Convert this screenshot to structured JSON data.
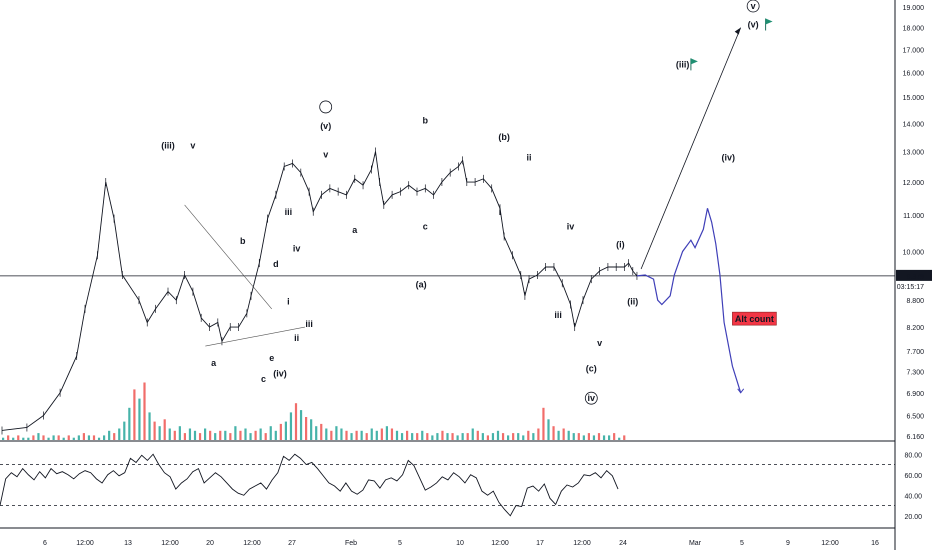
{
  "chart_data": {
    "type": "line",
    "symbol_panel": "price",
    "price_axis": {
      "ticks": [
        6.16,
        6.5,
        6.9,
        7.3,
        7.7,
        8.2,
        8.8,
        9.379,
        10.0,
        11.0,
        12.0,
        13.0,
        14.0,
        15.0,
        16.0,
        17.0,
        18.0,
        19.0
      ],
      "tick_labels": [
        "6.160",
        "6.500",
        "6.900",
        "7.300",
        "7.700",
        "8.200",
        "8.800",
        "10.000",
        "11.000",
        "12.000",
        "13.000",
        "14.000",
        "15.000",
        "16.000",
        "17.000",
        "18.000",
        "19.000"
      ],
      "last_price": "9.379",
      "countdown": "03:15:17",
      "scale": "log",
      "last_price_color": "#131722"
    },
    "time_axis": {
      "labels": [
        "6",
        "12:00",
        "13",
        "12:00",
        "20",
        "12:00",
        "27",
        "Feb",
        "5",
        "10",
        "12:00",
        "17",
        "12:00",
        "24",
        "Mar",
        "5",
        "9",
        "12:00",
        "16"
      ]
    },
    "price_path": [
      [
        0,
        6.25
      ],
      [
        6,
        6.3
      ],
      [
        10,
        6.5
      ],
      [
        14,
        6.9
      ],
      [
        18,
        7.6
      ],
      [
        20,
        8.6
      ],
      [
        23,
        9.9
      ],
      [
        25,
        12.0
      ],
      [
        27,
        10.9
      ],
      [
        29,
        9.4
      ],
      [
        33,
        8.8
      ],
      [
        35,
        8.3
      ],
      [
        37,
        8.6
      ],
      [
        40,
        9.0
      ],
      [
        42,
        8.8
      ],
      [
        44,
        9.4
      ],
      [
        46,
        9.0
      ],
      [
        48,
        8.4
      ],
      [
        50,
        8.2
      ],
      [
        52,
        8.3
      ],
      [
        53,
        7.9
      ],
      [
        55,
        8.2
      ],
      [
        57,
        8.2
      ],
      [
        59,
        8.5
      ],
      [
        60,
        8.9
      ],
      [
        62,
        9.7
      ],
      [
        64,
        10.9
      ],
      [
        66,
        11.6
      ],
      [
        68,
        12.5
      ],
      [
        70,
        12.6
      ],
      [
        72,
        12.3
      ],
      [
        74,
        11.7
      ],
      [
        75,
        11.1
      ],
      [
        77,
        11.6
      ],
      [
        79,
        11.8
      ],
      [
        81,
        11.7
      ],
      [
        83,
        11.6
      ],
      [
        85,
        12.1
      ],
      [
        87,
        11.9
      ],
      [
        89,
        12.4
      ],
      [
        90,
        13.0
      ],
      [
        91,
        12.0
      ],
      [
        92,
        11.3
      ],
      [
        94,
        11.6
      ],
      [
        96,
        11.7
      ],
      [
        98,
        11.9
      ],
      [
        100,
        11.7
      ],
      [
        102,
        11.8
      ],
      [
        104,
        11.6
      ],
      [
        106,
        12.0
      ],
      [
        108,
        12.3
      ],
      [
        110,
        12.5
      ],
      [
        111,
        12.7
      ],
      [
        112,
        12.0
      ],
      [
        114,
        12.0
      ],
      [
        116,
        12.1
      ],
      [
        118,
        11.8
      ],
      [
        120,
        11.2
      ],
      [
        121,
        10.4
      ],
      [
        123,
        9.9
      ],
      [
        125,
        9.4
      ],
      [
        126,
        8.9
      ],
      [
        127,
        9.3
      ],
      [
        129,
        9.4
      ],
      [
        131,
        9.6
      ],
      [
        133,
        9.6
      ],
      [
        135,
        9.2
      ],
      [
        137,
        8.7
      ],
      [
        138,
        8.2
      ],
      [
        140,
        8.8
      ],
      [
        142,
        9.3
      ],
      [
        144,
        9.5
      ],
      [
        146,
        9.6
      ],
      [
        148,
        9.6
      ],
      [
        150,
        9.6
      ],
      [
        151,
        9.7
      ],
      [
        152,
        9.5
      ],
      [
        153,
        9.379
      ]
    ],
    "projection": [
      [
        153,
        9.379
      ],
      [
        155,
        9.4
      ],
      [
        157,
        9.3
      ],
      [
        158,
        8.8
      ],
      [
        159,
        8.7
      ],
      [
        161,
        8.9
      ],
      [
        162,
        9.4
      ],
      [
        164,
        10.0
      ],
      [
        166,
        10.3
      ],
      [
        167,
        10.1
      ],
      [
        169,
        10.6
      ],
      [
        170,
        11.2
      ],
      [
        171,
        10.8
      ],
      [
        172,
        10.2
      ],
      [
        173,
        9.4
      ],
      [
        174,
        8.3
      ],
      [
        176,
        7.4
      ],
      [
        178,
        6.9
      ]
    ],
    "arrow_projection": [
      [
        154,
        9.55
      ],
      [
        178,
        18.0
      ]
    ],
    "triangle_upper": [
      [
        44,
        11.3
      ],
      [
        65,
        8.6
      ]
    ],
    "triangle_lower": [
      [
        49,
        7.8
      ],
      [
        73,
        8.2
      ]
    ],
    "wave_labels": [
      "(iii)",
      "v",
      "b",
      "d",
      "i",
      "a",
      "c",
      "e",
      "(iv)",
      "ii",
      "iii",
      "iv",
      "iii",
      "(v)",
      "v",
      "a",
      "c",
      "(a)",
      "b",
      "(b)",
      "ii",
      "i",
      "iv",
      "(i)",
      "iii",
      "v",
      "(ii)",
      "(c)",
      "iv",
      "(iii)",
      "(iv)",
      "(v)",
      "v"
    ],
    "annotations": {
      "alt_count": "Alt count",
      "alt_count_color": "#f23645"
    },
    "volume": {
      "up_color": "#26a69a",
      "down_color": "#ef5350",
      "bars": [
        1,
        2,
        1,
        2,
        1,
        1,
        2,
        3,
        2,
        1,
        2,
        2,
        1,
        2,
        1,
        2,
        3,
        2,
        2,
        1,
        2,
        4,
        3,
        5,
        8,
        14,
        22,
        18,
        25,
        12,
        8,
        6,
        9,
        5,
        4,
        6,
        3,
        5,
        4,
        3,
        5,
        4,
        3,
        4,
        4,
        3,
        6,
        4,
        5,
        3,
        4,
        5,
        3,
        6,
        4,
        7,
        8,
        12,
        16,
        13,
        10,
        9,
        6,
        7,
        5,
        4,
        6,
        5,
        4,
        3,
        4,
        4,
        3,
        5,
        4,
        5,
        6,
        5,
        4,
        3,
        4,
        3,
        3,
        4,
        3,
        2,
        3,
        4,
        3,
        3,
        2,
        3,
        3,
        5,
        4,
        3,
        2,
        3,
        4,
        3,
        2,
        3,
        3,
        2,
        4,
        3,
        5,
        14,
        9,
        6,
        4,
        5,
        4,
        3,
        3,
        2,
        3,
        2,
        3,
        2,
        2,
        3,
        1,
        2
      ],
      "bars_up": [
        true,
        false,
        true,
        false,
        true,
        true,
        false,
        true,
        false,
        true,
        true,
        false,
        true,
        false,
        true,
        true,
        false,
        true,
        false,
        true,
        true,
        true,
        false,
        true,
        true,
        true,
        false,
        true,
        false,
        true,
        false,
        true,
        false,
        true,
        false,
        true,
        false,
        true,
        true,
        false,
        true,
        false,
        true,
        false,
        true,
        false,
        true,
        false,
        true,
        true,
        false,
        true,
        false,
        true,
        true,
        false,
        true,
        true,
        false,
        true,
        false,
        true,
        true,
        false,
        true,
        false,
        true,
        true,
        false,
        true,
        false,
        true,
        false,
        true,
        true,
        false,
        true,
        false,
        true,
        true,
        false,
        true,
        false,
        true,
        false,
        true,
        true,
        false,
        true,
        false,
        true,
        true,
        false,
        true,
        false,
        true,
        false,
        true,
        true,
        false,
        true,
        false,
        true,
        true,
        false,
        true,
        false,
        false,
        true,
        false,
        true,
        false,
        true,
        true,
        false,
        true,
        false,
        true,
        false,
        true,
        true,
        false,
        true,
        false
      ]
    },
    "rsi": {
      "ticks": [
        20.0,
        40.0,
        60.0,
        80.0
      ],
      "tick_labels": [
        "20.00",
        "40.00",
        "60.00",
        "80.00"
      ],
      "levels": [
        30,
        70
      ],
      "values": [
        30,
        56,
        62,
        58,
        66,
        60,
        55,
        63,
        57,
        66,
        61,
        63,
        60,
        56,
        61,
        64,
        62,
        56,
        52,
        60,
        64,
        59,
        62,
        76,
        72,
        79,
        74,
        80,
        70,
        62,
        58,
        46,
        52,
        56,
        63,
        66,
        52,
        57,
        62,
        58,
        52,
        46,
        42,
        40,
        46,
        49,
        52,
        46,
        55,
        62,
        78,
        74,
        80,
        76,
        70,
        72,
        66,
        59,
        52,
        49,
        44,
        52,
        44,
        41,
        45,
        55,
        54,
        47,
        55,
        57,
        54,
        60,
        74,
        69,
        57,
        45,
        48,
        52,
        58,
        55,
        62,
        58,
        52,
        60,
        57,
        44,
        40,
        44,
        33,
        26,
        20,
        30,
        29,
        47,
        49,
        44,
        51,
        37,
        31,
        44,
        50,
        48,
        52,
        60,
        59,
        62,
        57,
        64,
        59,
        46
      ],
      "color": "#7e57c2"
    }
  }
}
